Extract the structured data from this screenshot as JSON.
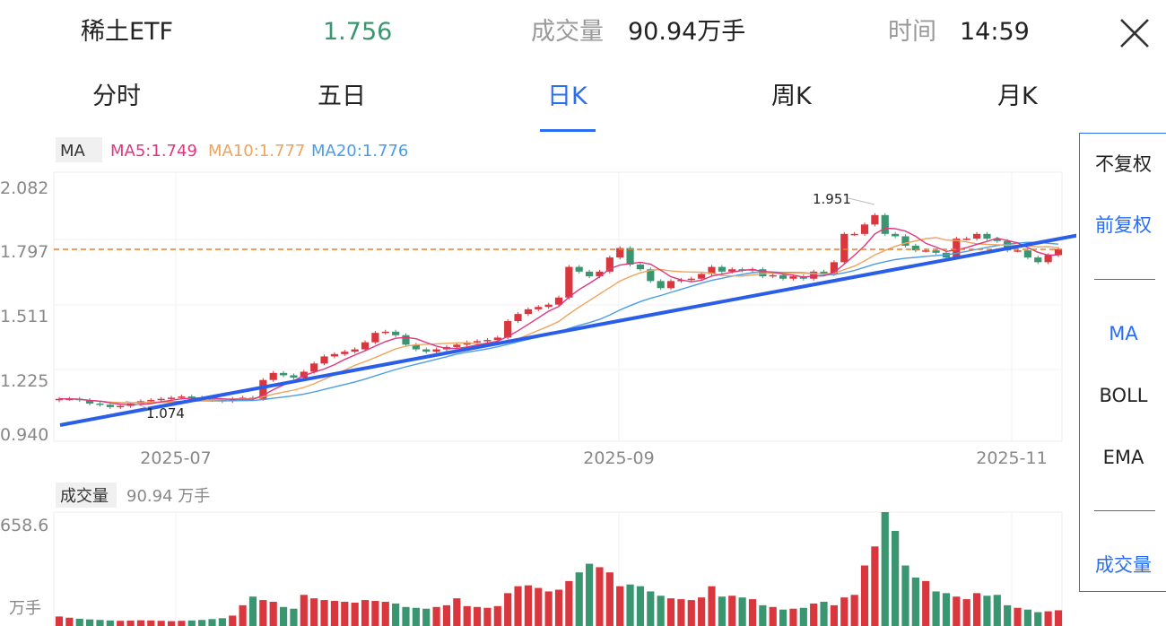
{
  "header": {
    "name": "稀土ETF",
    "price": "1.756",
    "volume_label": "成交量",
    "volume_value": "90.94万手",
    "time_label": "时间",
    "time_value": "14:59"
  },
  "tabs": [
    "分时",
    "五日",
    "日K",
    "周K",
    "月K"
  ],
  "active_tab": 2,
  "indicator": {
    "name": "MA",
    "ma5": "MA5:1.749",
    "ma10": "MA10:1.777",
    "ma20": "MA20:1.776"
  },
  "price_axis_labels": [
    "2.082",
    "1.797",
    "1.511",
    "1.225",
    "0.940"
  ],
  "date_labels": [
    "2025-07",
    "2025-09",
    "2025-11"
  ],
  "annotations": {
    "high": "1.951",
    "low": "1.074"
  },
  "volume_panel": {
    "label": "成交量",
    "value": "90.94 万手",
    "max_label": "658.6",
    "unit_label": "万手"
  },
  "side_options": [
    "不复权",
    "前复权",
    "MA",
    "BOLL",
    "EMA",
    "成交量"
  ],
  "selected_side": [
    1,
    2,
    5
  ],
  "colors": {
    "up": "#d9363e",
    "down": "#3a9670",
    "accent": "#2a6df4",
    "ma5": "#e0367f",
    "ma10": "#f0a35c",
    "ma20": "#4a9de6"
  },
  "chart_data": {
    "type": "candlestick",
    "y_range": [
      0.94,
      2.082
    ],
    "volume_range": [
      0,
      658.6
    ],
    "volume_unit": "万手",
    "closes": [
      1.12,
      1.12,
      1.115,
      1.1,
      1.095,
      1.085,
      1.09,
      1.1,
      1.11,
      1.115,
      1.12,
      1.125,
      1.13,
      1.125,
      1.12,
      1.115,
      1.11,
      1.12,
      1.125,
      1.12,
      1.2,
      1.23,
      1.22,
      1.21,
      1.235,
      1.27,
      1.3,
      1.31,
      1.32,
      1.33,
      1.36,
      1.4,
      1.405,
      1.39,
      1.35,
      1.33,
      1.32,
      1.33,
      1.34,
      1.35,
      1.36,
      1.365,
      1.37,
      1.38,
      1.45,
      1.48,
      1.5,
      1.51,
      1.52,
      1.55,
      1.68,
      1.66,
      1.64,
      1.66,
      1.72,
      1.76,
      1.69,
      1.67,
      1.62,
      1.59,
      1.62,
      1.625,
      1.63,
      1.65,
      1.68,
      1.66,
      1.67,
      1.665,
      1.67,
      1.64,
      1.645,
      1.63,
      1.64,
      1.63,
      1.66,
      1.65,
      1.7,
      1.82,
      1.82,
      1.86,
      1.9,
      1.82,
      1.81,
      1.77,
      1.75,
      1.75,
      1.74,
      1.72,
      1.8,
      1.8,
      1.82,
      1.8,
      1.79,
      1.75,
      1.75,
      1.72,
      1.7,
      1.73,
      1.756
    ],
    "volumes": [
      55,
      48,
      42,
      38,
      35,
      32,
      30,
      31,
      33,
      32,
      30,
      28,
      30,
      32,
      35,
      40,
      45,
      60,
      120,
      170,
      150,
      140,
      110,
      100,
      180,
      160,
      150,
      145,
      140,
      135,
      150,
      145,
      140,
      130,
      110,
      105,
      100,
      110,
      120,
      160,
      115,
      110,
      105,
      115,
      190,
      230,
      235,
      220,
      200,
      210,
      260,
      310,
      360,
      340,
      310,
      230,
      240,
      230,
      200,
      175,
      160,
      155,
      150,
      165,
      230,
      170,
      175,
      165,
      155,
      120,
      110,
      95,
      100,
      105,
      130,
      140,
      120,
      165,
      180,
      350,
      460,
      658.6,
      550,
      350,
      280,
      260,
      200,
      190,
      170,
      155,
      190,
      175,
      180,
      120,
      105,
      95,
      80,
      85,
      90.94
    ],
    "high_marker": 1.951,
    "low_marker": 1.074
  }
}
